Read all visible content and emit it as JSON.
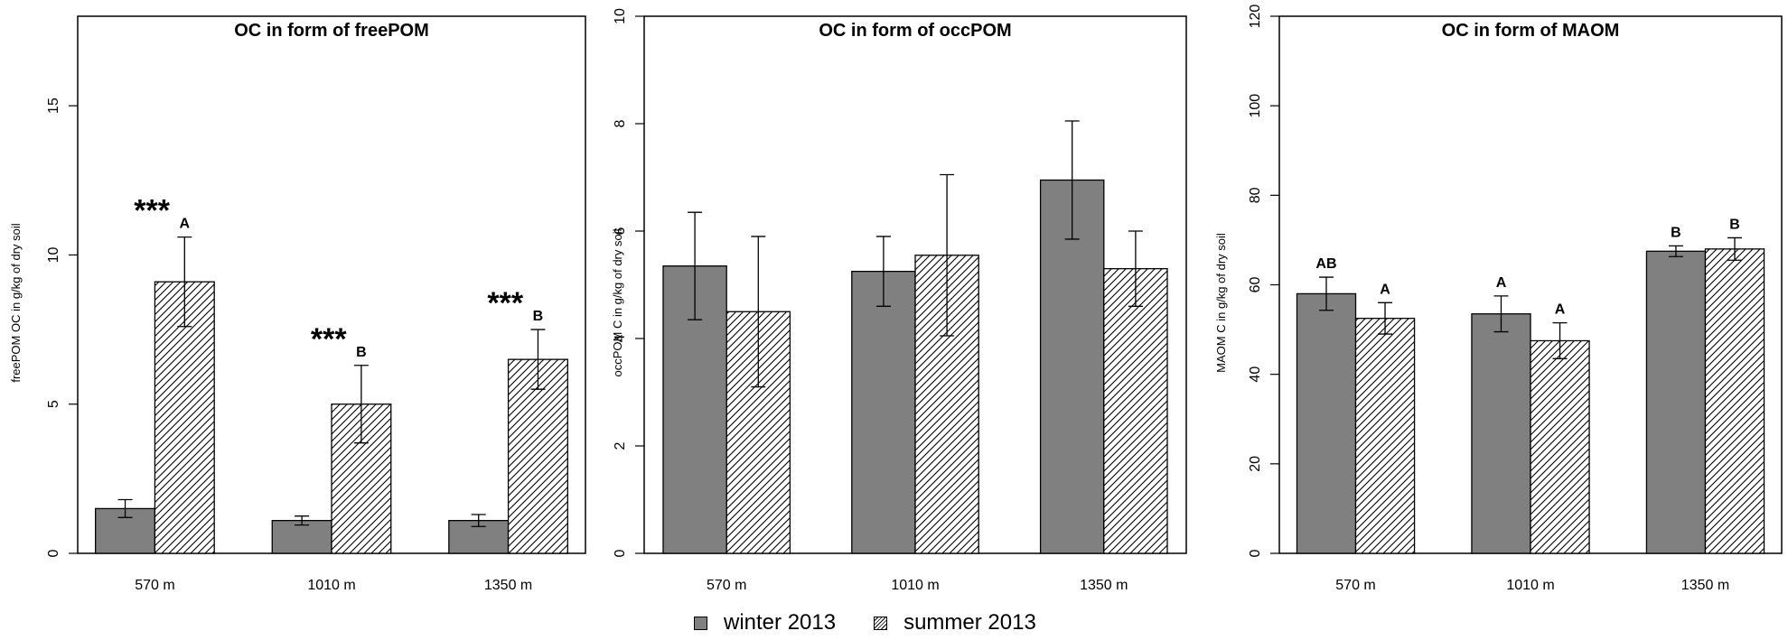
{
  "colors": {
    "winter_fill": "#808080",
    "summer_fill": "hatched",
    "axis": "#000000"
  },
  "legend": {
    "items": [
      {
        "label": "winter 2013",
        "style": "solid-grey"
      },
      {
        "label": "summer 2013",
        "style": "hatched"
      }
    ]
  },
  "chart_data": [
    {
      "type": "bar",
      "title": "OC in form of freePOM",
      "ylabel": "freePOM OC in g/kg of dry soil",
      "categories": [
        "570 m",
        "1010 m",
        "1350 m"
      ],
      "ylim": [
        0,
        18
      ],
      "yticks": [
        0,
        5,
        10,
        15
      ],
      "series": [
        {
          "name": "winter 2013",
          "values": [
            1.5,
            1.1,
            1.1
          ],
          "errors": [
            0.3,
            0.15,
            0.2
          ]
        },
        {
          "name": "summer 2013",
          "values": [
            9.1,
            5.0,
            6.5
          ],
          "errors": [
            1.5,
            1.3,
            1.0
          ]
        }
      ],
      "annotations": {
        "stars": [
          "***",
          "***",
          "***"
        ],
        "letters": [
          [
            "",
            "",
            ""
          ],
          [
            "A",
            "B",
            "B"
          ]
        ]
      }
    },
    {
      "type": "bar",
      "title": "OC in form of occPOM",
      "ylabel": "occPOM C in g/kg of dry soil",
      "categories": [
        "570 m",
        "1010 m",
        "1350 m"
      ],
      "ylim": [
        0,
        10
      ],
      "yticks": [
        0,
        2,
        4,
        6,
        8,
        10
      ],
      "series": [
        {
          "name": "winter 2013",
          "values": [
            5.35,
            5.25,
            6.95
          ],
          "errors": [
            1.0,
            0.65,
            1.1
          ]
        },
        {
          "name": "summer 2013",
          "values": [
            4.5,
            5.55,
            5.3
          ],
          "errors": [
            1.4,
            1.5,
            0.7
          ]
        }
      ],
      "annotations": {
        "stars": [
          "",
          "",
          ""
        ],
        "letters": [
          [
            "",
            "",
            ""
          ],
          [
            "",
            "",
            ""
          ]
        ]
      }
    },
    {
      "type": "bar",
      "title": "OC in form of MAOM",
      "ylabel": "MAOM C in g/kg of dry soil",
      "categories": [
        "570 m",
        "1010 m",
        "1350 m"
      ],
      "ylim": [
        0,
        120
      ],
      "yticks": [
        0,
        20,
        40,
        60,
        80,
        100,
        120
      ],
      "series": [
        {
          "name": "winter 2013",
          "values": [
            58,
            53.5,
            67.5
          ],
          "errors": [
            3.7,
            4.0,
            1.2
          ]
        },
        {
          "name": "summer 2013",
          "values": [
            52.5,
            47.5,
            68
          ],
          "errors": [
            3.5,
            4.0,
            2.5
          ]
        }
      ],
      "annotations": {
        "stars": [
          "",
          "",
          ""
        ],
        "letters": [
          [
            "AB",
            "A",
            "B"
          ],
          [
            "A",
            "A",
            "B"
          ]
        ]
      }
    }
  ]
}
